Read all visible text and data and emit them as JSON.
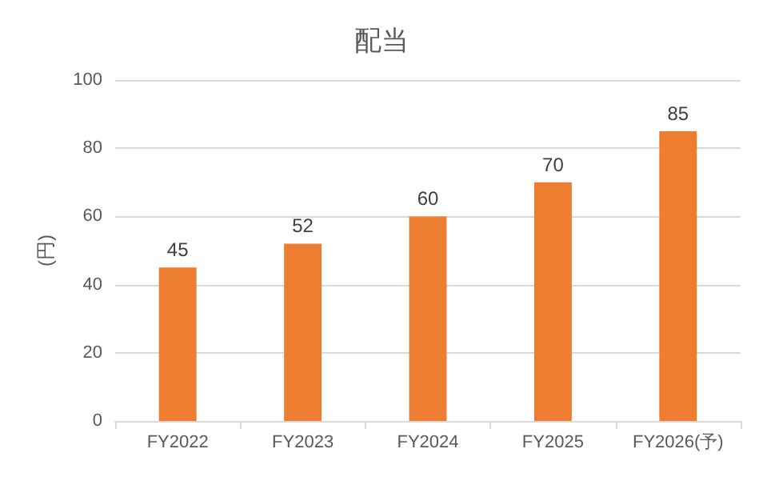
{
  "chart_data": {
    "type": "bar",
    "title": "配当",
    "ylabel": "(円)",
    "categories": [
      "FY2022",
      "FY2023",
      "FY2024",
      "FY2025",
      "FY2026(予)"
    ],
    "values": [
      45,
      52,
      60,
      70,
      85
    ],
    "color": "#ed7d31",
    "ylim": [
      0,
      100
    ],
    "yticks": [
      0,
      20,
      40,
      60,
      80,
      100
    ],
    "grid": "y",
    "data_labels": true
  }
}
